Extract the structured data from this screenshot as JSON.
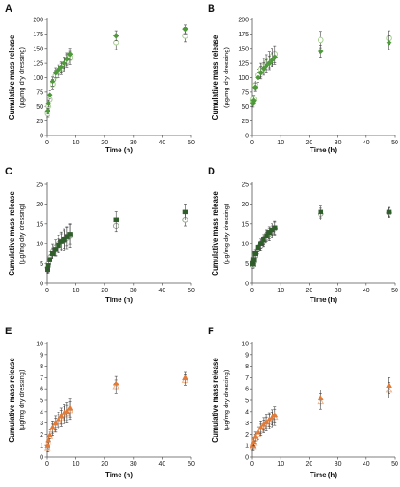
{
  "figure": {
    "panels": [
      {
        "label": "A",
        "ylabel_line1": "Cumulative mass release",
        "ylabel_line2": "(µg/mg dry dressing)",
        "xlabel": "Time (h)",
        "colors": {
          "s1": "#4e9a3a",
          "s2": "#a5cf8e"
        },
        "chart_data": {
          "type": "scatter",
          "x_ticks": [
            0,
            10,
            20,
            30,
            40,
            50
          ],
          "y_ticks": [
            0,
            25,
            50,
            75,
            100,
            125,
            150,
            175,
            200
          ],
          "xlim": [
            0,
            50
          ],
          "ylim": [
            0,
            200
          ],
          "series": [
            {
              "marker": "diamond-filled",
              "color": "#4e9a3a",
              "x": [
                0.25,
                0.5,
                1,
                2,
                3,
                4,
                5,
                6,
                7,
                8,
                24,
                48
              ],
              "y": [
                42,
                55,
                70,
                93,
                108,
                113,
                118,
                125,
                132,
                140,
                172,
                183
              ],
              "err": [
                5,
                6,
                7,
                8,
                8,
                9,
                9,
                10,
                10,
                10,
                8,
                8
              ]
            },
            {
              "marker": "circle-open",
              "color": "#a5cf8e",
              "x": [
                0.25,
                0.5,
                1,
                2,
                3,
                4,
                5,
                6,
                7,
                8,
                24,
                48
              ],
              "y": [
                38,
                50,
                62,
                88,
                103,
                110,
                115,
                122,
                128,
                134,
                160,
                172
              ],
              "err": [
                6,
                7,
                8,
                9,
                9,
                10,
                10,
                11,
                11,
                11,
                12,
                10
              ]
            }
          ]
        }
      },
      {
        "label": "B",
        "ylabel_line1": "Cumulative mass release",
        "ylabel_line2": "(µg/mg dry dressing)",
        "xlabel": "Time (h)",
        "colors": {
          "s1": "#4e9a3a",
          "s2": "#a5cf8e"
        },
        "chart_data": {
          "type": "scatter",
          "x_ticks": [
            0,
            10,
            20,
            30,
            40,
            50
          ],
          "y_ticks": [
            0,
            25,
            50,
            75,
            100,
            125,
            150,
            175,
            200
          ],
          "xlim": [
            0,
            50
          ],
          "ylim": [
            0,
            200
          ],
          "series": [
            {
              "marker": "diamond-filled",
              "color": "#4e9a3a",
              "x": [
                0.25,
                0.5,
                1,
                2,
                3,
                4,
                5,
                6,
                7,
                8,
                24,
                48
              ],
              "y": [
                55,
                60,
                83,
                100,
                108,
                115,
                120,
                125,
                130,
                135,
                145,
                160
              ],
              "err": [
                6,
                6,
                7,
                9,
                10,
                11,
                11,
                12,
                12,
                12,
                10,
                12
              ]
            },
            {
              "marker": "circle-open",
              "color": "#a5cf8e",
              "x": [
                0.25,
                0.5,
                1,
                2,
                3,
                4,
                5,
                6,
                7,
                8,
                24,
                48
              ],
              "y": [
                60,
                63,
                86,
                104,
                113,
                120,
                126,
                130,
                136,
                140,
                165,
                168
              ],
              "err": [
                5,
                6,
                8,
                10,
                12,
                13,
                13,
                14,
                14,
                14,
                14,
                12
              ]
            }
          ]
        }
      },
      {
        "label": "C",
        "ylabel_line1": "Cumulative mass release",
        "ylabel_line2": "(µg/mg dry dressing)",
        "xlabel": "Time (h)",
        "colors": {
          "s1": "#2f5e2a",
          "s2": "#9aaa94"
        },
        "chart_data": {
          "type": "scatter",
          "x_ticks": [
            0,
            10,
            20,
            30,
            40,
            50
          ],
          "y_ticks": [
            0,
            5,
            10,
            15,
            20,
            25
          ],
          "xlim": [
            0,
            50
          ],
          "ylim": [
            0,
            25
          ],
          "series": [
            {
              "marker": "square-filled",
              "color": "#2f5e2a",
              "x": [
                0.25,
                0.5,
                1,
                2,
                3,
                4,
                5,
                6,
                7,
                8,
                24,
                48
              ],
              "y": [
                3.5,
                4.5,
                6,
                7.5,
                8.5,
                9.5,
                10.5,
                11,
                11.8,
                12.3,
                16,
                18
              ],
              "err": [
                1,
                1,
                1.2,
                1.4,
                1.6,
                1.8,
                2,
                2.2,
                2.4,
                2.5,
                2.2,
                2
              ]
            },
            {
              "marker": "circle-open",
              "color": "#9aaa94",
              "x": [
                0.25,
                0.5,
                1,
                2,
                3,
                4,
                5,
                6,
                7,
                8,
                24,
                48
              ],
              "y": [
                4,
                5,
                6.5,
                8,
                9,
                10,
                10.5,
                11,
                11.5,
                12,
                14.5,
                16
              ],
              "err": [
                1.2,
                1.3,
                1.5,
                1.8,
                2,
                2.2,
                2.4,
                2.6,
                2.8,
                3,
                1.5,
                1.5
              ]
            }
          ]
        }
      },
      {
        "label": "D",
        "ylabel_line1": "Cumulative mass release",
        "ylabel_line2": "(µg/mg dry dressing)",
        "xlabel": "Time (h)",
        "colors": {
          "s1": "#2f5e2a",
          "s2": "#9aaa94"
        },
        "chart_data": {
          "type": "scatter",
          "x_ticks": [
            0,
            10,
            20,
            30,
            40,
            50
          ],
          "y_ticks": [
            0,
            5,
            10,
            15,
            20,
            25
          ],
          "xlim": [
            0,
            50
          ],
          "ylim": [
            0,
            25
          ],
          "series": [
            {
              "marker": "square-filled",
              "color": "#2f5e2a",
              "x": [
                0.25,
                0.5,
                1,
                2,
                3,
                4,
                5,
                6,
                7,
                8,
                24,
                48
              ],
              "y": [
                5,
                6,
                7.5,
                9,
                10,
                11,
                12,
                12.8,
                13.5,
                14,
                18,
                18
              ],
              "err": [
                0.8,
                0.9,
                1,
                1.1,
                1.2,
                1.3,
                1.4,
                1.5,
                1.5,
                1.6,
                1.5,
                1.2
              ]
            },
            {
              "marker": "circle-open",
              "color": "#9aaa94",
              "x": [
                0.25,
                0.5,
                1,
                2,
                3,
                4,
                5,
                6,
                7,
                8,
                24,
                48
              ],
              "y": [
                4.5,
                5.5,
                7,
                8.5,
                9.5,
                10.5,
                11.5,
                12.3,
                13,
                13.8,
                17.5,
                17.8
              ],
              "err": [
                0.8,
                0.9,
                1,
                1.1,
                1.2,
                1.3,
                1.4,
                1.5,
                1.5,
                1.6,
                1.5,
                1.2
              ]
            }
          ]
        }
      },
      {
        "label": "E",
        "ylabel_line1": "Cumulative mass release",
        "ylabel_line2": "(µg/mg dry dressing)",
        "xlabel": "Time (h)",
        "colors": {
          "s1": "#e07b39",
          "s2": "#f2b489"
        },
        "chart_data": {
          "type": "scatter",
          "x_ticks": [
            0,
            10,
            20,
            30,
            40,
            50
          ],
          "y_ticks": [
            0,
            1,
            2,
            3,
            4,
            5,
            6,
            7,
            8,
            9,
            10
          ],
          "xlim": [
            0,
            50
          ],
          "ylim": [
            0,
            10
          ],
          "series": [
            {
              "marker": "triangle-filled",
              "color": "#e07b39",
              "x": [
                0.25,
                0.5,
                1,
                2,
                3,
                4,
                5,
                6,
                7,
                8,
                24,
                48
              ],
              "y": [
                1,
                1.5,
                2,
                2.6,
                3,
                3.3,
                3.6,
                3.9,
                4,
                4.3,
                6.5,
                7
              ],
              "err": [
                0.3,
                0.35,
                0.4,
                0.5,
                0.6,
                0.65,
                0.7,
                0.75,
                0.8,
                0.8,
                0.6,
                0.5
              ]
            },
            {
              "marker": "triangle-open",
              "color": "#f2b489",
              "x": [
                0.25,
                0.5,
                1,
                2,
                3,
                4,
                5,
                6,
                7,
                8,
                24,
                48
              ],
              "y": [
                0.8,
                1.3,
                1.8,
                2.4,
                2.8,
                3.1,
                3.4,
                3.7,
                3.8,
                4.1,
                6.2,
                6.8
              ],
              "err": [
                0.3,
                0.35,
                0.4,
                0.5,
                0.6,
                0.65,
                0.7,
                0.75,
                0.8,
                0.8,
                0.6,
                0.5
              ]
            }
          ]
        }
      },
      {
        "label": "F",
        "ylabel_line1": "Cumulative mass release",
        "ylabel_line2": "(µg/mg dry dressing)",
        "xlabel": "Time (h)",
        "colors": {
          "s1": "#e07b39",
          "s2": "#f2b489"
        },
        "chart_data": {
          "type": "scatter",
          "x_ticks": [
            0,
            10,
            20,
            30,
            40,
            50
          ],
          "y_ticks": [
            0,
            1,
            2,
            3,
            4,
            5,
            6,
            7,
            8,
            9,
            10
          ],
          "xlim": [
            0,
            50
          ],
          "ylim": [
            0,
            10
          ],
          "series": [
            {
              "marker": "triangle-filled",
              "color": "#e07b39",
              "x": [
                0.25,
                0.5,
                1,
                2,
                3,
                4,
                5,
                6,
                7,
                8,
                24,
                48
              ],
              "y": [
                1,
                1.3,
                1.8,
                2.2,
                2.6,
                2.9,
                3.1,
                3.3,
                3.5,
                3.7,
                5.2,
                6.3
              ],
              "err": [
                0.3,
                0.35,
                0.4,
                0.45,
                0.5,
                0.55,
                0.6,
                0.6,
                0.65,
                0.7,
                0.7,
                0.7
              ]
            },
            {
              "marker": "triangle-open",
              "color": "#f2b489",
              "x": [
                0.25,
                0.5,
                1,
                2,
                3,
                4,
                5,
                6,
                7,
                8,
                24,
                48
              ],
              "y": [
                0.9,
                1.2,
                1.6,
                2,
                2.4,
                2.7,
                2.9,
                3.1,
                3.3,
                3.5,
                4.9,
                5.9
              ],
              "err": [
                0.3,
                0.35,
                0.4,
                0.45,
                0.5,
                0.55,
                0.6,
                0.6,
                0.65,
                0.7,
                0.7,
                0.7
              ]
            }
          ]
        }
      }
    ]
  }
}
